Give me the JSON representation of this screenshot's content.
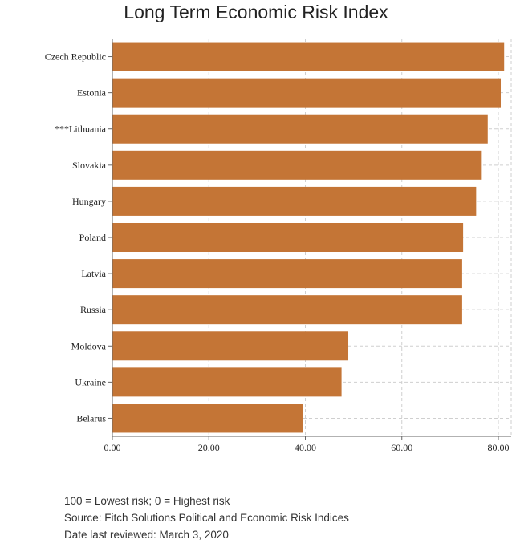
{
  "chart_data": {
    "type": "bar",
    "orientation": "horizontal",
    "title": "Long Term Economic Risk Index",
    "categories": [
      "Czech Republic",
      "Estonia",
      "***Lithuania",
      "Slovakia",
      "Hungary",
      "Poland",
      "Latvia",
      "Russia",
      "Moldova",
      "Ukraine",
      "Belarus"
    ],
    "values": [
      81.2,
      80.5,
      77.8,
      76.4,
      75.4,
      72.7,
      72.5,
      72.5,
      48.9,
      47.5,
      39.5
    ],
    "xlim": [
      0,
      80
    ],
    "x_ticks": [
      0,
      20,
      40,
      60,
      80
    ],
    "x_tick_labels": [
      "0.00",
      "20.00",
      "40.00",
      "60.00",
      "80.00"
    ],
    "xlabel": "",
    "ylabel": "",
    "grid": true,
    "bar_color": "#c47536"
  },
  "notes": {
    "scale": "100 = Lowest risk; 0 = Highest risk",
    "source": "Source: Fitch Solutions Political and Economic Risk Indices",
    "reviewed": "Date last reviewed: March 3, 2020"
  }
}
